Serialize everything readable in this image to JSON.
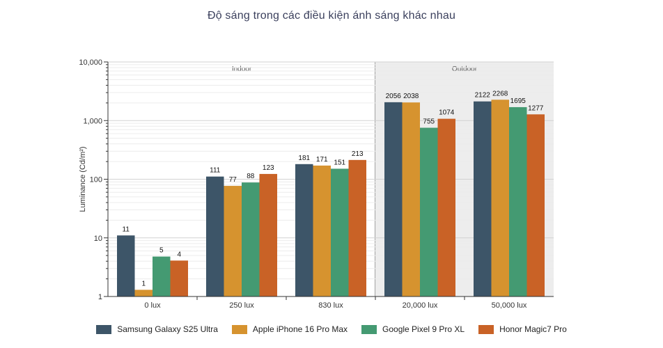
{
  "chart_data": {
    "type": "bar",
    "title": "Độ sáng trong các điều kiện ánh sáng khác nhau",
    "ylabel": "Luminance (Cd/m²)",
    "xlabel": "",
    "yscale": "log",
    "ylim": [
      1,
      10000
    ],
    "yticks": [
      "1",
      "10",
      "100",
      "1,000",
      "10,000"
    ],
    "categories": [
      "0 lux",
      "250 lux",
      "830 lux",
      "20,000 lux",
      "50,000 lux"
    ],
    "regions": [
      {
        "label": "Indoor",
        "categories": [
          "0 lux",
          "250 lux",
          "830 lux"
        ],
        "shaded": false
      },
      {
        "label": "Outdoor",
        "categories": [
          "20,000 lux",
          "50,000 lux"
        ],
        "shaded": true
      }
    ],
    "series": [
      {
        "name": "Samsung Galaxy S25 Ultra",
        "color": "#3d5568",
        "values": [
          11,
          111,
          181,
          2056,
          2122
        ],
        "labels": [
          "11",
          "111",
          "181",
          "2056",
          "2122"
        ]
      },
      {
        "name": "Apple iPhone 16 Pro Max",
        "color": "#d6932f",
        "values": [
          1.3,
          77,
          171,
          2038,
          2268
        ],
        "labels": [
          "1",
          "77",
          "171",
          "2038",
          "2268"
        ]
      },
      {
        "name": "Google Pixel 9 Pro XL",
        "color": "#449a72",
        "values": [
          4.8,
          88,
          151,
          755,
          1695
        ],
        "labels": [
          "5",
          "88",
          "151",
          "755",
          "1695"
        ]
      },
      {
        "name": "Honor Magic7 Pro",
        "color": "#c96226",
        "values": [
          4.1,
          123,
          213,
          1074,
          1277
        ],
        "labels": [
          "4",
          "123",
          "213",
          "1074",
          "1277"
        ]
      }
    ],
    "grid": true,
    "legend_position": "bottom"
  }
}
